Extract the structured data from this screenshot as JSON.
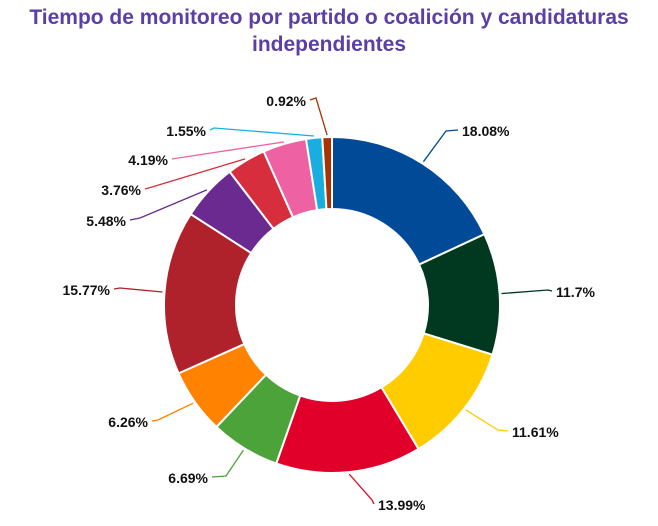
{
  "chart_data": {
    "type": "pie",
    "style": "donut",
    "title": "Tiempo de monitoreo por partido o coalición y candidaturas independientes",
    "series": [
      {
        "value": 18.08,
        "label": "18.08%",
        "color": "#004a97"
      },
      {
        "value": 11.7,
        "label": "11.7%",
        "color": "#00391f"
      },
      {
        "value": 11.61,
        "label": "11.61%",
        "color": "#ffcc00"
      },
      {
        "value": 13.99,
        "label": "13.99%",
        "color": "#e0002a"
      },
      {
        "value": 6.69,
        "label": "6.69%",
        "color": "#4ca339"
      },
      {
        "value": 6.26,
        "label": "6.26%",
        "color": "#ff8200"
      },
      {
        "value": 15.77,
        "label": "15.77%",
        "color": "#b0222b"
      },
      {
        "value": 5.48,
        "label": "5.48%",
        "color": "#6a2a8f"
      },
      {
        "value": 3.76,
        "label": "3.76%",
        "color": "#d62e3c"
      },
      {
        "value": 4.19,
        "label": "4.19%",
        "color": "#ee62a4"
      },
      {
        "value": 1.55,
        "label": "1.55%",
        "color": "#1aaee0"
      },
      {
        "value": 0.92,
        "label": "0.92%",
        "color": "#a83200"
      }
    ],
    "legend": "none"
  }
}
